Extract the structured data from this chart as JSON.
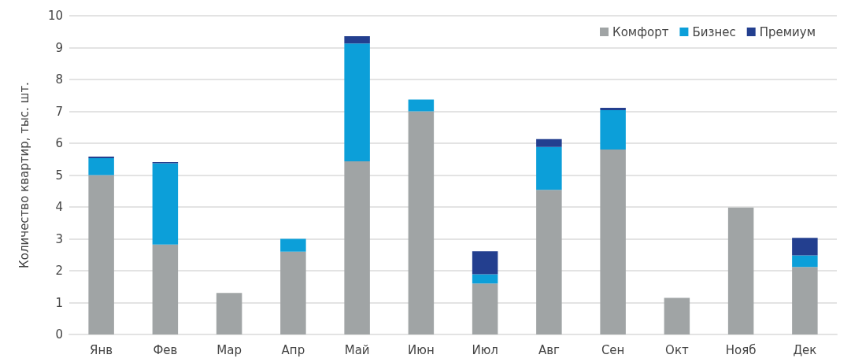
{
  "chart_data": {
    "type": "bar",
    "stacked": true,
    "ylabel": "Количество квартир, тыс. шт.",
    "categories": [
      "Янв",
      "Фев",
      "Мар",
      "Апр",
      "Май",
      "Июн",
      "Июл",
      "Авг",
      "Сен",
      "Окт",
      "Нояб",
      "Дек"
    ],
    "series": [
      {
        "name": "Комфорт",
        "color": "#a0a4a5",
        "values": [
          5.0,
          2.82,
          1.3,
          2.6,
          5.43,
          7.0,
          1.6,
          4.54,
          5.8,
          1.15,
          3.98,
          2.12
        ]
      },
      {
        "name": "Бизнес",
        "color": "#0c9fd9",
        "values": [
          0.53,
          2.55,
          null,
          0.4,
          3.7,
          0.37,
          0.29,
          1.34,
          1.24,
          null,
          null,
          0.36
        ]
      },
      {
        "name": "Премиум",
        "color": "#233f8f",
        "values": [
          0.05,
          0.04,
          null,
          null,
          0.23,
          null,
          0.72,
          0.25,
          0.07,
          null,
          null,
          0.55
        ]
      }
    ],
    "ylim": [
      0,
      10
    ],
    "yticks": [
      0,
      1,
      2,
      3,
      4,
      5,
      6,
      7,
      8,
      9,
      10
    ],
    "grid": "y",
    "legend": "top right"
  }
}
